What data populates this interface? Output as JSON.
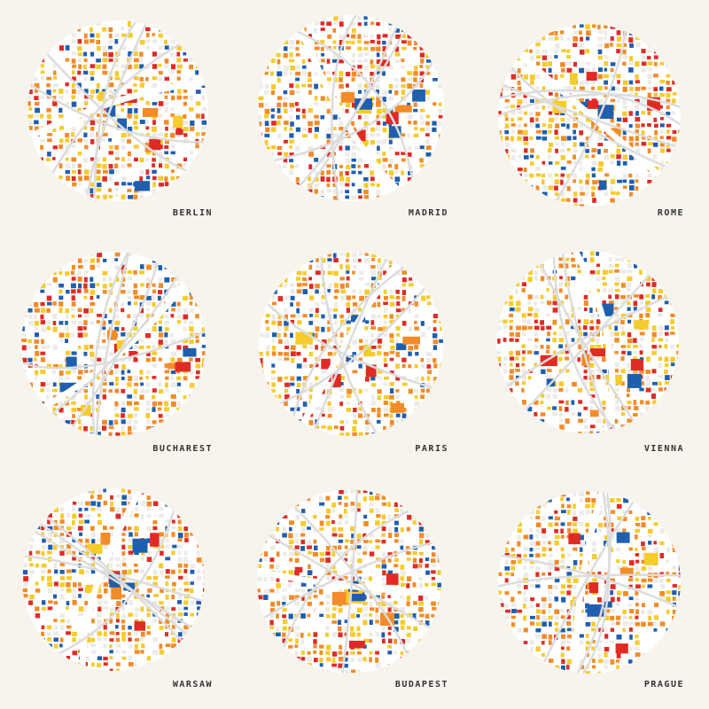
{
  "palette": {
    "red": "#e02b25",
    "yellow": "#f6cb2c",
    "orange": "#f28c28",
    "blue": "#1f5fae",
    "light_gray": "#ecebe7",
    "white": "#ffffff",
    "street": "#dcdcdc",
    "background": "#f7f4ee"
  },
  "cities": [
    {
      "name": "BERLIN",
      "icon": "berlin-city-map-icon"
    },
    {
      "name": "MADRID",
      "icon": "madrid-city-map-icon"
    },
    {
      "name": "ROME",
      "icon": "rome-city-map-icon"
    },
    {
      "name": "BUCHAREST",
      "icon": "bucharest-city-map-icon"
    },
    {
      "name": "PARIS",
      "icon": "paris-city-map-icon"
    },
    {
      "name": "VIENNA",
      "icon": "vienna-city-map-icon"
    },
    {
      "name": "WARSAW",
      "icon": "warsaw-city-map-icon"
    },
    {
      "name": "BUDAPEST",
      "icon": "budapest-city-map-icon"
    },
    {
      "name": "PRAGUE",
      "icon": "prague-city-map-icon"
    }
  ]
}
